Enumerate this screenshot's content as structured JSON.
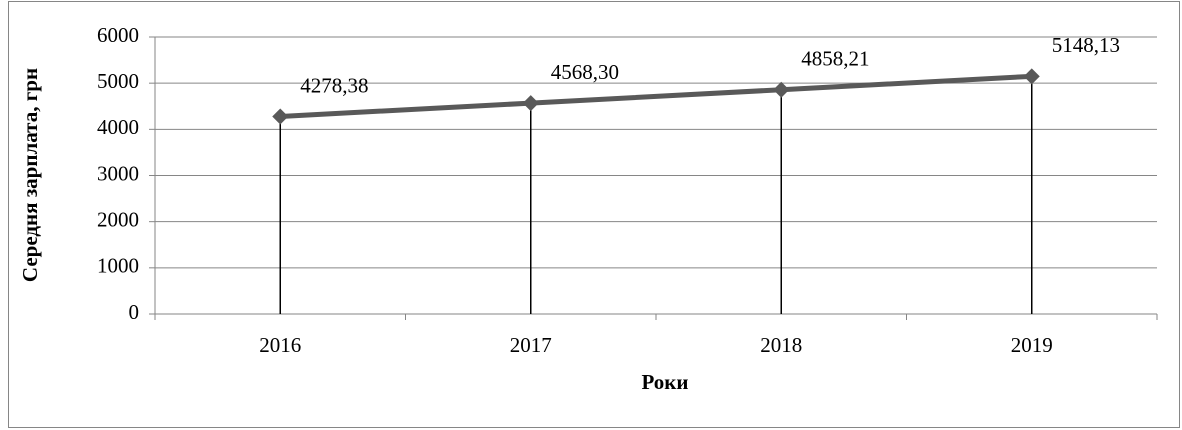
{
  "chart_data": {
    "type": "line",
    "y_label": "Середня зарплата, грн",
    "x_label": "Роки",
    "categories": [
      "2016",
      "2017",
      "2018",
      "2019"
    ],
    "series": [
      {
        "name": null,
        "color": "#595959",
        "values": [
          4278.38,
          4568.3,
          4858.21,
          5148.13
        ],
        "value_labels": [
          "4278,38",
          "4568,30",
          "4858,21",
          "5148,13"
        ]
      }
    ],
    "ylim": [
      0,
      6000
    ],
    "yticks": [
      0,
      1000,
      2000,
      3000,
      4000,
      5000,
      6000
    ],
    "grid": true,
    "drop_lines": true
  }
}
